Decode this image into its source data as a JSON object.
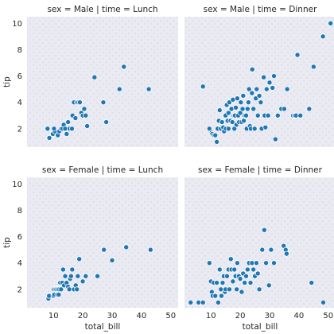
{
  "chart_data": {
    "type": "scatter",
    "xlabel": "total_bill",
    "ylabel": "tip",
    "xlim": [
      1,
      52.5
    ],
    "ylim": [
      0.6,
      10.5
    ],
    "xticks": [
      10,
      20,
      30,
      40,
      50
    ],
    "yticks": [
      2,
      4,
      6,
      8,
      10
    ],
    "marker_color": "#1f77b4",
    "panel_background": "#eaeaf2",
    "panels": [
      {
        "title": "sex = Male | time = Lunch",
        "points": [
          [
            8.6,
            1.3
          ],
          [
            8,
            2.0
          ],
          [
            9.8,
            1.6
          ],
          [
            10.5,
            1.8
          ],
          [
            10.2,
            2.0
          ],
          [
            11.5,
            1.5
          ],
          [
            12.0,
            1.8
          ],
          [
            12.6,
            2.0
          ],
          [
            13.0,
            2.0
          ],
          [
            13.5,
            2.3
          ],
          [
            14.0,
            2.0
          ],
          [
            14.5,
            1.6
          ],
          [
            15.0,
            2.5
          ],
          [
            15.5,
            2.0
          ],
          [
            16.3,
            2.0
          ],
          [
            16.5,
            3.0
          ],
          [
            17.0,
            4.0
          ],
          [
            17.5,
            2.8
          ],
          [
            18.0,
            4.0
          ],
          [
            18.5,
            4.0
          ],
          [
            19.0,
            4.0
          ],
          [
            19.5,
            3.2
          ],
          [
            20.0,
            3.0
          ],
          [
            20.5,
            3.5
          ],
          [
            21.0,
            3.0
          ],
          [
            21.5,
            2.2
          ],
          [
            24.0,
            5.9
          ],
          [
            27.0,
            4.0
          ],
          [
            28.0,
            2.5
          ],
          [
            32.5,
            5.0
          ],
          [
            34.0,
            6.7
          ],
          [
            42.5,
            5.0
          ]
        ]
      },
      {
        "title": "sex = Male | time = Dinner",
        "points": [
          [
            7.3,
            5.2
          ],
          [
            9.5,
            2.0
          ],
          [
            10.3,
            1.7
          ],
          [
            10.5,
            1.6
          ],
          [
            11.0,
            1.5
          ],
          [
            11.5,
            1.5
          ],
          [
            12.0,
            1.0
          ],
          [
            12.3,
            2.0
          ],
          [
            12.7,
            2.6
          ],
          [
            13.0,
            3.4
          ],
          [
            13.4,
            2.0
          ],
          [
            13.8,
            2.5
          ],
          [
            14.2,
            2.1
          ],
          [
            14.5,
            1.8
          ],
          [
            15.0,
            3.0
          ],
          [
            15.1,
            2.0
          ],
          [
            15.4,
            3.8
          ],
          [
            15.7,
            2.6
          ],
          [
            16.0,
            3.2
          ],
          [
            16.0,
            2.0
          ],
          [
            16.3,
            4.0
          ],
          [
            16.7,
            2.6
          ],
          [
            17.0,
            3.5
          ],
          [
            17.3,
            2.5
          ],
          [
            17.5,
            4.2
          ],
          [
            17.8,
            3.0
          ],
          [
            18.0,
            2.0
          ],
          [
            18.2,
            3.0
          ],
          [
            18.5,
            3.6
          ],
          [
            18.7,
            2.3
          ],
          [
            19.0,
            4.3
          ],
          [
            19.3,
            3.0
          ],
          [
            19.6,
            2.5
          ],
          [
            20.0,
            3.2
          ],
          [
            20.2,
            4.0
          ],
          [
            20.5,
            2.5
          ],
          [
            20.8,
            3.5
          ],
          [
            21.0,
            4.5
          ],
          [
            21.2,
            2.6
          ],
          [
            21.5,
            3.0
          ],
          [
            22.0,
            3.0
          ],
          [
            22.2,
            2.0
          ],
          [
            22.5,
            3.5
          ],
          [
            22.8,
            4.0
          ],
          [
            23.0,
            5.0
          ],
          [
            23.3,
            2.2
          ],
          [
            23.6,
            2.0
          ],
          [
            24.0,
            4.7
          ],
          [
            24.1,
            6.5
          ],
          [
            24.5,
            3.5
          ],
          [
            24.9,
            2.0
          ],
          [
            25.3,
            4.3
          ],
          [
            25.6,
            5.0
          ],
          [
            26.0,
            3.0
          ],
          [
            26.5,
            4.5
          ],
          [
            27.0,
            4.0
          ],
          [
            27.3,
            2.0
          ],
          [
            28.0,
            5.9
          ],
          [
            28.3,
            3.0
          ],
          [
            28.6,
            2.1
          ],
          [
            29.0,
            5.0
          ],
          [
            29.5,
            3.0
          ],
          [
            30.0,
            5.5
          ],
          [
            31.0,
            5.1
          ],
          [
            31.5,
            6.0
          ],
          [
            32.0,
            1.2
          ],
          [
            32.8,
            3.0
          ],
          [
            34.0,
            3.5
          ],
          [
            35.0,
            3.5
          ],
          [
            36.0,
            5.0
          ],
          [
            38.0,
            3.0
          ],
          [
            38.5,
            3.0
          ],
          [
            39.0,
            3.0
          ],
          [
            39.5,
            7.6
          ],
          [
            40.5,
            3.0
          ],
          [
            43.5,
            3.5
          ],
          [
            45.0,
            6.7
          ],
          [
            48.2,
            9.0
          ],
          [
            50.8,
            10.0
          ]
        ]
      },
      {
        "title": "sex = Female | time = Lunch",
        "points": [
          [
            8.3,
            1.3
          ],
          [
            8.5,
            1.5
          ],
          [
            10.0,
            1.5
          ],
          [
            10.1,
            2.0
          ],
          [
            10.3,
            1.6
          ],
          [
            10.6,
            2.0
          ],
          [
            11.0,
            2.0
          ],
          [
            11.3,
            1.6
          ],
          [
            11.5,
            2.0
          ],
          [
            11.8,
            1.6
          ],
          [
            12.0,
            2.0
          ],
          [
            12.3,
            2.5
          ],
          [
            12.6,
            2.0
          ],
          [
            13.0,
            2.5
          ],
          [
            13.3,
            3.5
          ],
          [
            13.6,
            2.3
          ],
          [
            14.0,
            3.0
          ],
          [
            14.5,
            2.5
          ],
          [
            15.0,
            2.2
          ],
          [
            15.4,
            2.0
          ],
          [
            15.7,
            2.8
          ],
          [
            16.0,
            3.0
          ],
          [
            16.4,
            3.5
          ],
          [
            17.0,
            2.0
          ],
          [
            17.6,
            2.3
          ],
          [
            18.0,
            2.0
          ],
          [
            18.3,
            3.0
          ],
          [
            18.8,
            4.3
          ],
          [
            20.0,
            2.6
          ],
          [
            21.0,
            3.0
          ],
          [
            25.0,
            3.0
          ],
          [
            27.2,
            5.0
          ],
          [
            30.0,
            4.2
          ],
          [
            34.8,
            5.2
          ],
          [
            43.1,
            5.0
          ]
        ]
      },
      {
        "title": "sex = Female | time = Dinner",
        "points": [
          [
            3.1,
            1.0
          ],
          [
            5.8,
            1.0
          ],
          [
            7.3,
            1.0
          ],
          [
            9.5,
            4.0
          ],
          [
            10.0,
            2.6
          ],
          [
            10.3,
            1.8
          ],
          [
            10.6,
            1.5
          ],
          [
            11.0,
            2.5
          ],
          [
            11.5,
            1.5
          ],
          [
            12.0,
            2.5
          ],
          [
            12.5,
            1.0
          ],
          [
            13.0,
            3.5
          ],
          [
            13.4,
            2.0
          ],
          [
            13.6,
            1.5
          ],
          [
            14.0,
            2.5
          ],
          [
            14.4,
            3.0
          ],
          [
            14.8,
            1.8
          ],
          [
            15.0,
            2.0
          ],
          [
            15.5,
            3.0
          ],
          [
            16.0,
            3.5
          ],
          [
            16.3,
            2.0
          ],
          [
            16.8,
            4.3
          ],
          [
            17.0,
            3.5
          ],
          [
            17.5,
            2.6
          ],
          [
            18.0,
            3.5
          ],
          [
            18.4,
            3.0
          ],
          [
            18.8,
            2.0
          ],
          [
            19.0,
            4.0
          ],
          [
            19.5,
            3.0
          ],
          [
            20.0,
            2.8
          ],
          [
            20.5,
            1.8
          ],
          [
            21.0,
            3.2
          ],
          [
            21.5,
            2.5
          ],
          [
            22.0,
            3.0
          ],
          [
            22.5,
            3.5
          ],
          [
            23.0,
            4.0
          ],
          [
            23.5,
            2.5
          ],
          [
            24.0,
            4.0
          ],
          [
            24.5,
            3.5
          ],
          [
            25.0,
            3.0
          ],
          [
            25.5,
            4.0
          ],
          [
            26.0,
            3.2
          ],
          [
            26.5,
            2.0
          ],
          [
            27.5,
            5.0
          ],
          [
            28.2,
            6.5
          ],
          [
            28.8,
            4.0
          ],
          [
            29.8,
            2.3
          ],
          [
            30.5,
            5.0
          ],
          [
            31.5,
            4.0
          ],
          [
            34.8,
            5.3
          ],
          [
            35.5,
            5.0
          ],
          [
            35.8,
            4.7
          ],
          [
            44.3,
            2.5
          ],
          [
            48.3,
            1.0
          ]
        ]
      }
    ]
  }
}
